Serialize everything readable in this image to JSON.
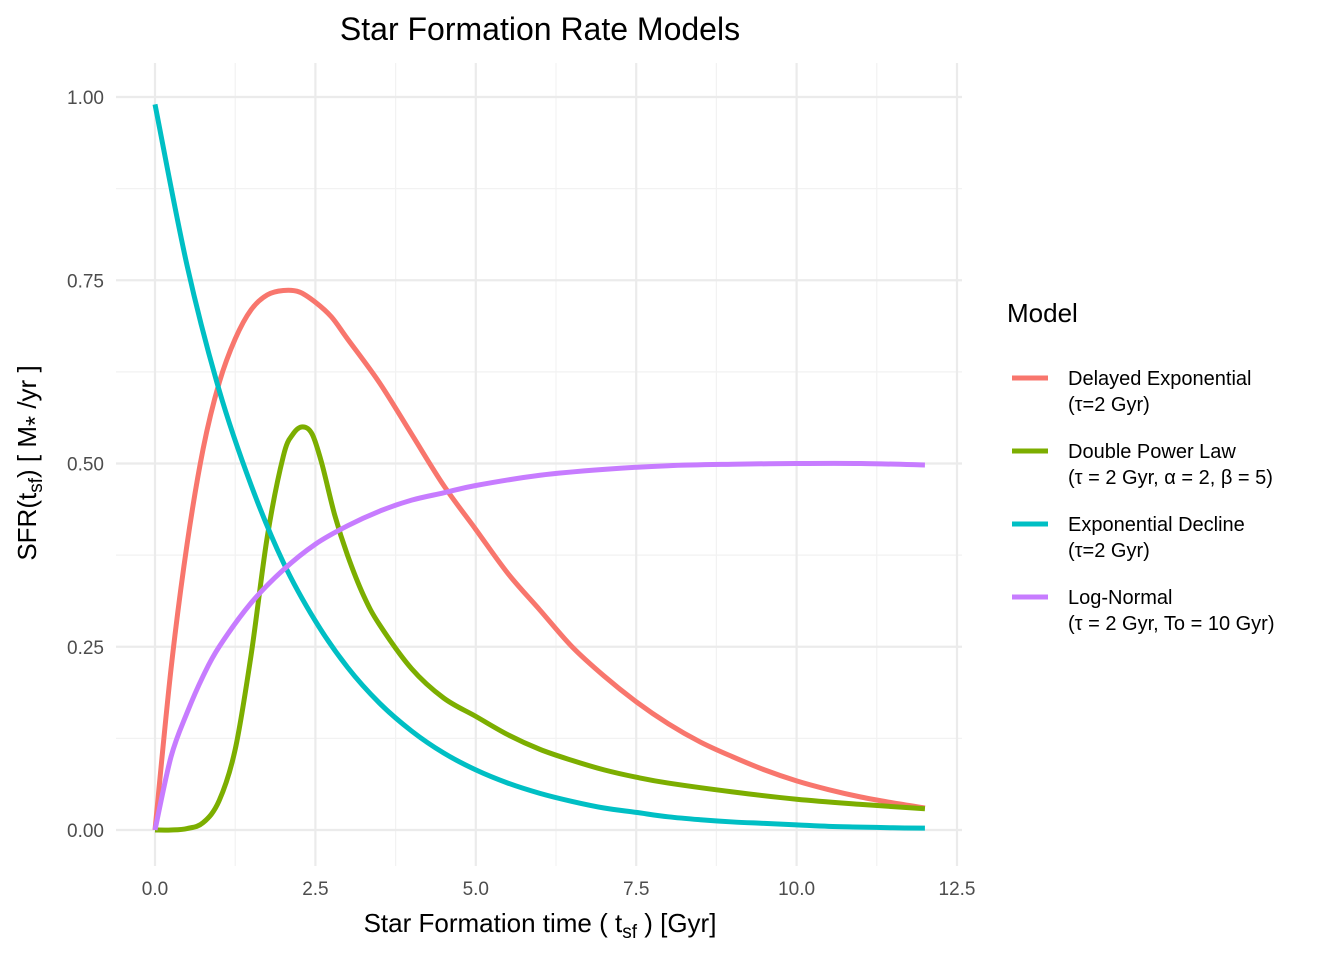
{
  "chart_data": {
    "type": "line",
    "title": "Star Formation Rate Models",
    "xlabel": {
      "pre": "Star Formation time ( t",
      "sub": "sf",
      "post": " ) [Gyr]"
    },
    "ylabel": {
      "pre": "SFR(t",
      "sub": "sf",
      "mid": ") [ M",
      "sub2": "*",
      "post": " /yr ]"
    },
    "xlim": [
      0,
      12.5
    ],
    "ylim": [
      0,
      1.0
    ],
    "x_ticks": [
      0,
      2.5,
      5,
      7.5,
      10,
      12.5
    ],
    "x_tick_labels": [
      "0.0",
      "2.5",
      "5.0",
      "7.5",
      "10.0",
      "12.5"
    ],
    "y_ticks": [
      0,
      0.25,
      0.5,
      0.75,
      1.0
    ],
    "y_tick_labels": [
      "0.00",
      "0.25",
      "0.50",
      "0.75",
      "1.00"
    ],
    "grid": true,
    "legend": {
      "title": "Model",
      "placement": "right",
      "entries": [
        {
          "name": "Delayed Exponential",
          "detail": "(τ=2 Gyr)",
          "color": "#F8766D"
        },
        {
          "name": "Double Power Law",
          "detail": "(τ = 2 Gyr, α = 2, β = 5)",
          "color": "#7CAE00"
        },
        {
          "name": "Exponential Decline",
          "detail": "(τ=2 Gyr)",
          "color": "#00BFC4"
        },
        {
          "name": "Log-Normal",
          "detail": "(τ = 2 Gyr, To = 10 Gyr)",
          "color": "#C77CFF"
        }
      ]
    },
    "series": [
      {
        "color": "#F8766D",
        "x": [
          0,
          0.25,
          0.5,
          0.75,
          1,
          1.25,
          1.5,
          1.75,
          2,
          2.25,
          2.5,
          2.75,
          3,
          3.5,
          4,
          4.5,
          5,
          5.5,
          6,
          6.5,
          7,
          7.5,
          8,
          8.5,
          9,
          9.5,
          10,
          10.5,
          11,
          11.5,
          12
        ],
        "y": [
          0,
          0.22,
          0.39,
          0.52,
          0.61,
          0.67,
          0.71,
          0.73,
          0.736,
          0.734,
          0.72,
          0.7,
          0.67,
          0.61,
          0.54,
          0.47,
          0.41,
          0.35,
          0.3,
          0.25,
          0.21,
          0.175,
          0.145,
          0.12,
          0.1,
          0.082,
          0.067,
          0.055,
          0.045,
          0.037,
          0.03
        ]
      },
      {
        "color": "#7CAE00",
        "x": [
          0,
          0.25,
          0.5,
          0.75,
          1,
          1.25,
          1.5,
          1.75,
          2,
          2.15,
          2.3,
          2.45,
          2.6,
          2.8,
          3,
          3.25,
          3.5,
          4,
          4.5,
          5,
          5.5,
          6,
          6.5,
          7,
          7.5,
          8,
          9,
          10,
          11,
          12
        ],
        "y": [
          0,
          0,
          0.002,
          0.01,
          0.04,
          0.11,
          0.24,
          0.4,
          0.51,
          0.54,
          0.55,
          0.54,
          0.5,
          0.43,
          0.375,
          0.32,
          0.28,
          0.22,
          0.18,
          0.155,
          0.13,
          0.11,
          0.095,
          0.082,
          0.072,
          0.064,
          0.052,
          0.042,
          0.035,
          0.029
        ]
      },
      {
        "color": "#00BFC4",
        "x": [
          0,
          0.5,
          1,
          1.5,
          2,
          2.5,
          3,
          3.5,
          4,
          4.5,
          5,
          5.5,
          6,
          6.5,
          7,
          7.5,
          8,
          8.5,
          9,
          9.5,
          10,
          10.5,
          11,
          11.5,
          12
        ],
        "y": [
          0.99,
          0.77,
          0.6,
          0.47,
          0.365,
          0.285,
          0.222,
          0.173,
          0.135,
          0.105,
          0.082,
          0.064,
          0.05,
          0.039,
          0.03,
          0.024,
          0.018,
          0.014,
          0.011,
          0.009,
          0.007,
          0.005,
          0.004,
          0.003,
          0.0025
        ]
      },
      {
        "color": "#C77CFF",
        "x": [
          0,
          0.25,
          0.5,
          0.75,
          1,
          1.5,
          2,
          2.5,
          3,
          3.5,
          4,
          4.5,
          5,
          6,
          7,
          8,
          9,
          10,
          11,
          12
        ],
        "y": [
          0,
          0.1,
          0.16,
          0.21,
          0.25,
          0.31,
          0.355,
          0.39,
          0.415,
          0.435,
          0.45,
          0.46,
          0.47,
          0.484,
          0.492,
          0.497,
          0.499,
          0.5,
          0.5,
          0.498
        ]
      }
    ]
  }
}
